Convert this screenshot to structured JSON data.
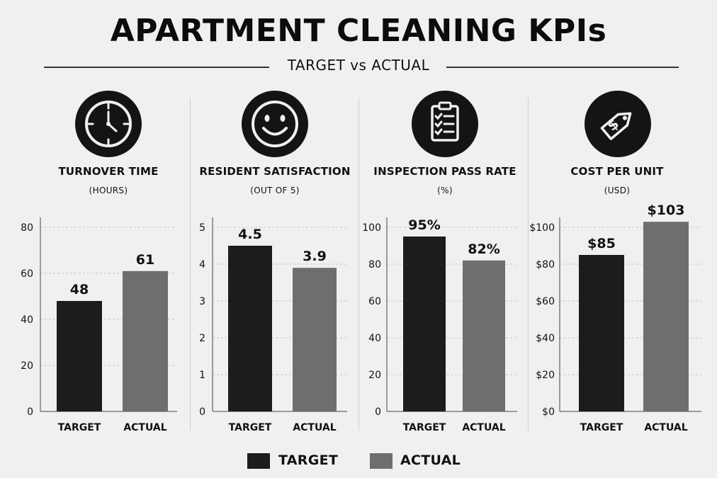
{
  "title": "APARTMENT CLEANING KPIs",
  "subtitle": "TARGET vs ACTUAL",
  "colors": {
    "target": "#1c1c1c",
    "actual": "#6e6e6e",
    "grid": "#c6c6c6"
  },
  "legend": [
    {
      "name": "TARGET",
      "color": "#1c1c1c"
    },
    {
      "name": "ACTUAL",
      "color": "#6e6e6e"
    }
  ],
  "panels": [
    {
      "icon": "clock-icon",
      "label": "TURNOVER TIME",
      "unit": "(HOURS)"
    },
    {
      "icon": "smiley-icon",
      "label": "RESIDENT SATISFACTION",
      "unit": "(OUT OF 5)"
    },
    {
      "icon": "clipboard-checklist-icon",
      "label": "INSPECTION PASS RATE",
      "unit": "(%)"
    },
    {
      "icon": "price-tag-icon",
      "label": "COST PER UNIT",
      "unit": "(USD)"
    }
  ],
  "chart_data": [
    {
      "type": "bar",
      "title": "TURNOVER TIME",
      "subtitle": "(HOURS)",
      "categories": [
        "TARGET",
        "ACTUAL"
      ],
      "values": [
        48,
        61
      ],
      "data_labels": [
        "48",
        "61"
      ],
      "ylim": [
        0,
        80
      ],
      "yticks": [
        0,
        20,
        40,
        60,
        80
      ],
      "ytick_labels": [
        "0",
        "20",
        "40",
        "60",
        "80"
      ],
      "grid": true
    },
    {
      "type": "bar",
      "title": "RESIDENT SATISFACTION",
      "subtitle": "(OUT OF 5)",
      "categories": [
        "TARGET",
        "ACTUAL"
      ],
      "values": [
        4.5,
        3.9
      ],
      "data_labels": [
        "4.5",
        "3.9"
      ],
      "ylim": [
        0,
        5
      ],
      "yticks": [
        0,
        1,
        2,
        3,
        4,
        5
      ],
      "ytick_labels": [
        "0",
        "1",
        "2",
        "3",
        "4",
        "5"
      ],
      "grid": true
    },
    {
      "type": "bar",
      "title": "INSPECTION PASS RATE",
      "subtitle": "(%)",
      "categories": [
        "TARGET",
        "ACTUAL"
      ],
      "values": [
        95,
        82
      ],
      "data_labels": [
        "95%",
        "82%"
      ],
      "ylim": [
        0,
        100
      ],
      "yticks": [
        0,
        20,
        40,
        60,
        80,
        100
      ],
      "ytick_labels": [
        "0",
        "20",
        "40",
        "60",
        "80",
        "100"
      ],
      "grid": true
    },
    {
      "type": "bar",
      "title": "COST PER UNIT",
      "subtitle": "(USD)",
      "categories": [
        "TARGET",
        "ACTUAL"
      ],
      "values": [
        85,
        103
      ],
      "data_labels": [
        "$85",
        "$103"
      ],
      "ylim": [
        0,
        100
      ],
      "yticks": [
        0,
        20,
        40,
        60,
        80,
        100
      ],
      "ytick_labels": [
        "$0",
        "$20",
        "$40",
        "$60",
        "$80",
        "$100"
      ],
      "grid": true
    }
  ]
}
